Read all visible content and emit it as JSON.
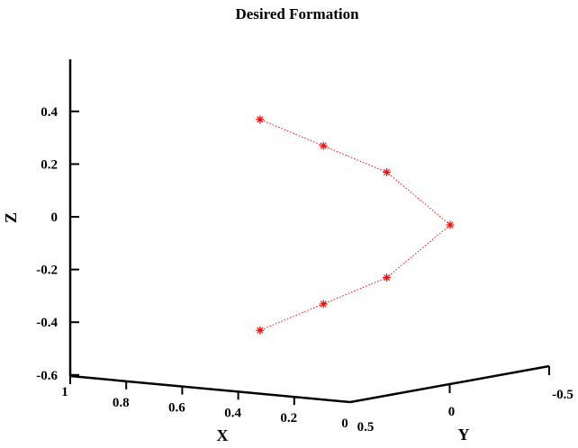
{
  "chart_data": {
    "type": "scatter",
    "title": "Desired Formation",
    "xlabel": "X",
    "ylabel": "Y",
    "zlabel": "Z",
    "grid": false,
    "x_ticks": [
      "1",
      "0.8",
      "0.6",
      "0.4",
      "0.2",
      "0"
    ],
    "y_ticks": [
      "0.5",
      "0",
      "-0.5"
    ],
    "z_ticks": [
      "0.4",
      "0.2",
      "0",
      "-0.2",
      "-0.4",
      "-0.6"
    ],
    "xlim": [
      0,
      1
    ],
    "ylim": [
      -0.5,
      0.5
    ],
    "zlim": [
      -0.6,
      0.6
    ],
    "series": [
      {
        "marker": "*",
        "line_style": "dotted",
        "color": "#ff0000",
        "points": [
          {
            "x": 0,
            "y": 0,
            "z": 0
          },
          {
            "x": 0.2,
            "y": 0,
            "z": 0.2
          },
          {
            "x": 0.4,
            "y": 0,
            "z": 0.3
          },
          {
            "x": 0.6,
            "y": 0,
            "z": 0.4
          },
          {
            "x": 0.2,
            "y": 0,
            "z": -0.2
          },
          {
            "x": 0.4,
            "y": 0,
            "z": -0.3
          },
          {
            "x": 0.6,
            "y": 0,
            "z": -0.4
          }
        ]
      }
    ]
  }
}
